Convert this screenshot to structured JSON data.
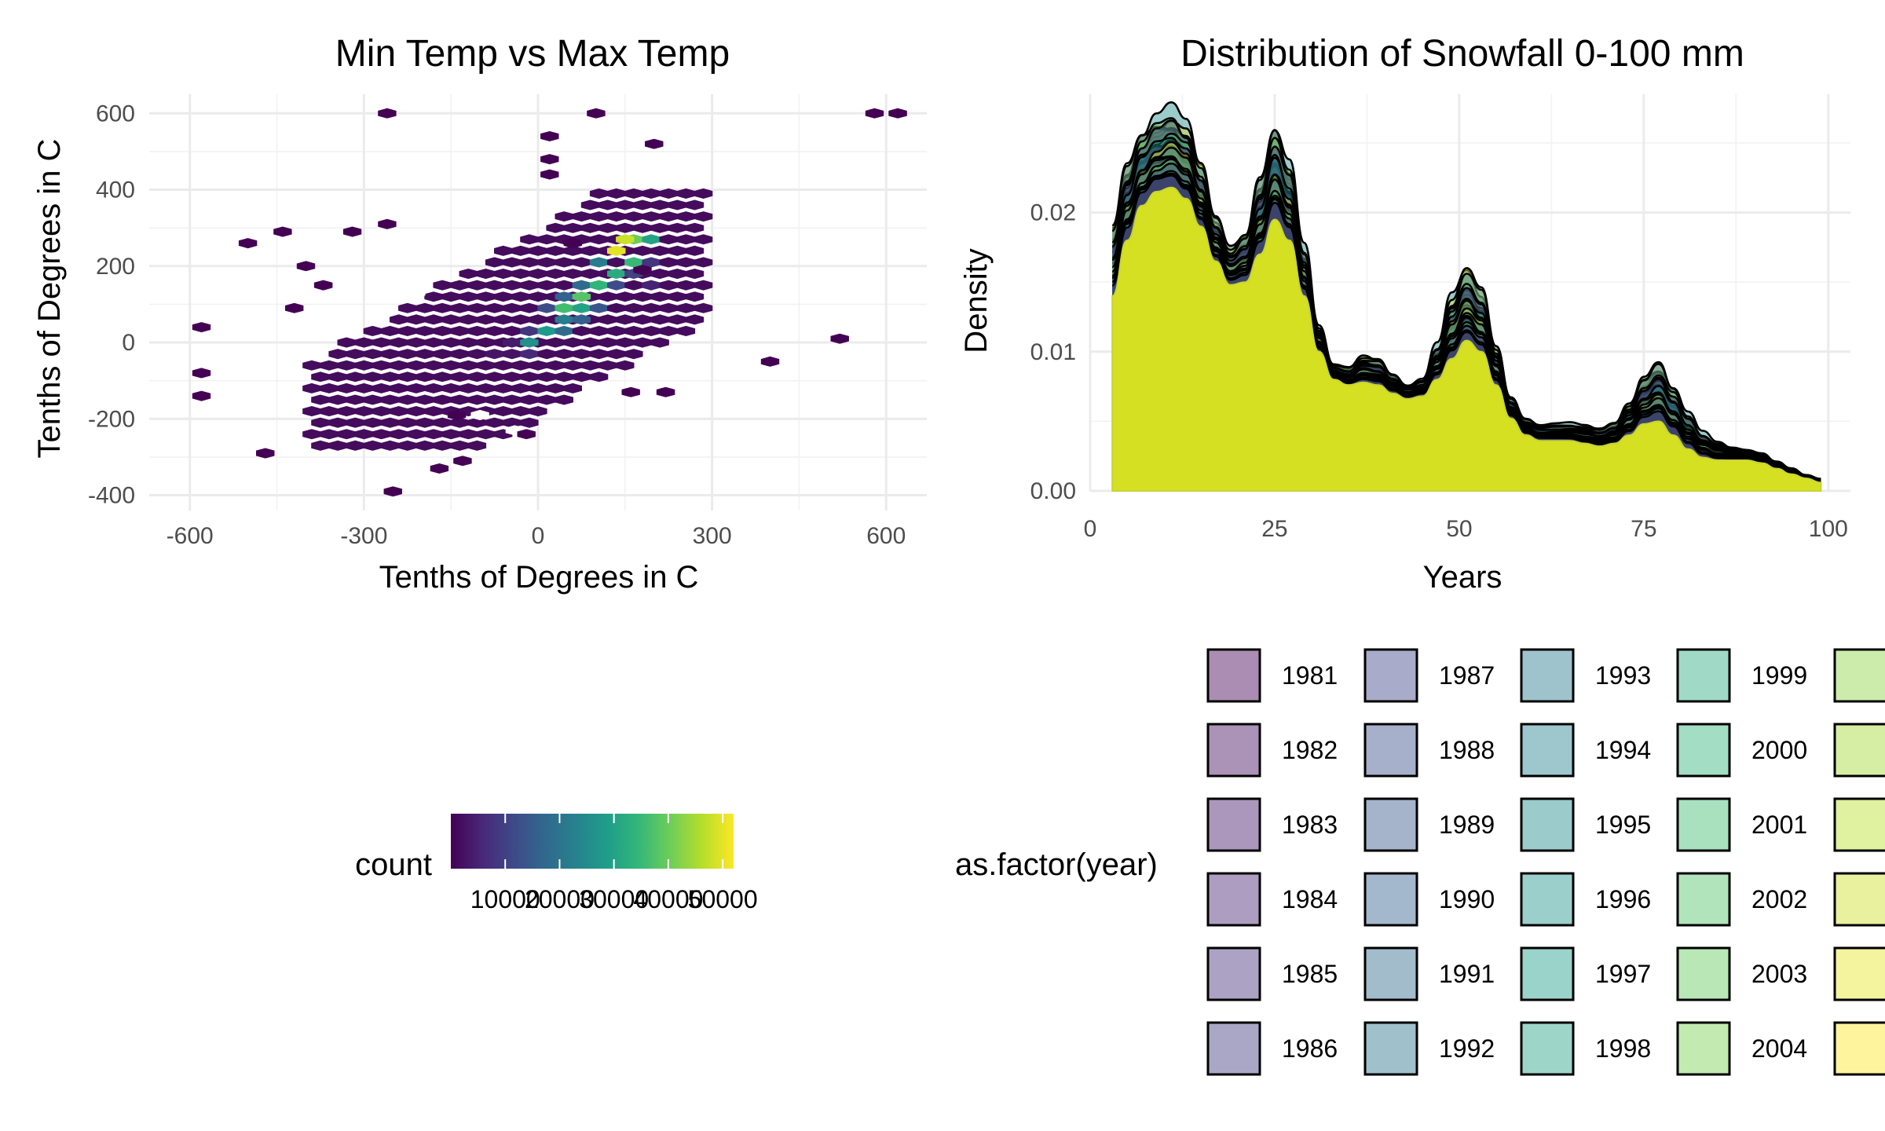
{
  "colors": {
    "viridis": [
      "#440154",
      "#482878",
      "#3e4a89",
      "#31688e",
      "#26828e",
      "#1f9e89",
      "#35b779",
      "#6ece58",
      "#b5de2b",
      "#fde725"
    ],
    "curve_stroke": "#000000",
    "grid": "#ebebeb"
  },
  "chart_data": [
    {
      "type": "heatmap",
      "subtype": "hexbin",
      "title": "Min Temp vs Max Temp",
      "xlabel": "Tenths of Degrees in C",
      "ylabel": "Tenths of Degrees in C",
      "xlim": [
        -670,
        670
      ],
      "ylim": [
        -440,
        650
      ],
      "x_ticks": [
        -600,
        -300,
        0,
        300,
        600
      ],
      "x_tick_labels": [
        "-600",
        "-300",
        "0",
        "300",
        "600"
      ],
      "y_ticks": [
        -400,
        -200,
        0,
        200,
        400,
        600
      ],
      "y_tick_labels": [
        "-400",
        "-200",
        "0",
        "200",
        "400",
        "600"
      ],
      "grid": true,
      "hex_bins": {
        "centers_xy_count": [
          [
            -80,
            -20,
            3000
          ],
          [
            -50,
            0,
            4000
          ],
          [
            -20,
            40,
            8000
          ],
          [
            10,
            80,
            12000
          ],
          [
            40,
            120,
            16000
          ],
          [
            70,
            160,
            18000
          ],
          [
            100,
            200,
            22000
          ],
          [
            130,
            240,
            28000
          ],
          [
            160,
            270,
            40000
          ],
          [
            -20,
            -20,
            6000
          ],
          [
            10,
            20,
            14000
          ],
          [
            40,
            60,
            22000
          ],
          [
            70,
            100,
            30000
          ],
          [
            100,
            140,
            34000
          ],
          [
            130,
            180,
            32000
          ],
          [
            160,
            220,
            35000
          ],
          [
            190,
            260,
            30000
          ],
          [
            130,
            230,
            50000
          ],
          [
            150,
            260,
            48000
          ],
          [
            -10,
            0,
            26000
          ],
          [
            20,
            40,
            28000
          ],
          [
            50,
            80,
            36000
          ],
          [
            80,
            120,
            38000
          ],
          [
            -40,
            -40,
            2500
          ],
          [
            40,
            20,
            18000
          ],
          [
            70,
            60,
            16000
          ],
          [
            100,
            100,
            14000
          ],
          [
            130,
            140,
            12000
          ],
          [
            160,
            180,
            10000
          ],
          [
            190,
            220,
            8000
          ],
          [
            200,
            160,
            5000
          ],
          [
            -100,
            -40,
            1500
          ]
        ],
        "sparse_points_xy": [
          [
            -260,
            600
          ],
          [
            100,
            600
          ],
          [
            580,
            600
          ],
          [
            620,
            600
          ],
          [
            20,
            540
          ],
          [
            200,
            520
          ],
          [
            20,
            480
          ],
          [
            20,
            440
          ],
          [
            -500,
            260
          ],
          [
            -440,
            290
          ],
          [
            -320,
            290
          ],
          [
            -260,
            310
          ],
          [
            -400,
            200
          ],
          [
            -370,
            150
          ],
          [
            -420,
            90
          ],
          [
            -580,
            40
          ],
          [
            -580,
            -80
          ],
          [
            -580,
            -140
          ],
          [
            520,
            10
          ],
          [
            400,
            -50
          ],
          [
            -250,
            -390
          ],
          [
            -170,
            -330
          ],
          [
            -130,
            -310
          ],
          [
            -20,
            -240
          ],
          [
            -140,
            -190
          ],
          [
            220,
            -130
          ],
          [
            160,
            -130
          ],
          [
            60,
            260
          ],
          [
            180,
            190
          ],
          [
            -470,
            -290
          ]
        ]
      },
      "legend": {
        "title": "count",
        "placement": "bottom",
        "range": [
          1,
          52000
        ],
        "ticks": [
          10000,
          20000,
          30000,
          40000,
          50000
        ],
        "tick_labels": [
          "10000",
          "20000",
          "30000",
          "40000",
          "50000"
        ]
      }
    },
    {
      "type": "area",
      "subtype": "density",
      "title": "Distribution of Snowfall 0-100 mm",
      "xlabel": "Years",
      "ylabel": "Density",
      "xlim": [
        0,
        103
      ],
      "ylim": [
        0,
        0.0285
      ],
      "x_ticks": [
        0,
        25,
        50,
        75,
        100
      ],
      "x_tick_labels": [
        "0",
        "25",
        "50",
        "75",
        "100"
      ],
      "y_ticks": [
        0,
        0.01,
        0.02
      ],
      "y_tick_labels": [
        "0.00",
        "0.01",
        "0.02"
      ],
      "grid": true,
      "x": [
        3,
        5,
        7,
        9,
        11,
        13,
        15,
        17,
        19,
        21,
        23,
        25,
        27,
        29,
        31,
        33,
        35,
        37,
        39,
        41,
        43,
        45,
        47,
        49,
        51,
        53,
        55,
        57,
        59,
        61,
        63,
        65,
        67,
        69,
        71,
        73,
        75,
        77,
        79,
        81,
        83,
        85,
        87,
        89,
        91,
        93,
        95,
        97,
        99
      ],
      "base_density": [
        0.014,
        0.018,
        0.0205,
        0.0215,
        0.0218,
        0.021,
        0.019,
        0.0165,
        0.0148,
        0.015,
        0.017,
        0.0195,
        0.018,
        0.014,
        0.01,
        0.008,
        0.0076,
        0.0078,
        0.0076,
        0.007,
        0.0066,
        0.0068,
        0.008,
        0.0095,
        0.0108,
        0.01,
        0.0076,
        0.0052,
        0.004,
        0.0036,
        0.0036,
        0.0036,
        0.0034,
        0.0032,
        0.0034,
        0.004,
        0.0048,
        0.005,
        0.004,
        0.003,
        0.0024,
        0.0022,
        0.0022,
        0.0022,
        0.002,
        0.0016,
        0.0012,
        0.0009,
        0.0006
      ],
      "peak_density": [
        0.02,
        0.0245,
        0.0268,
        0.0278,
        0.0282,
        0.027,
        0.024,
        0.02,
        0.018,
        0.019,
        0.0235,
        0.0275,
        0.0245,
        0.018,
        0.012,
        0.0092,
        0.009,
        0.01,
        0.0098,
        0.0086,
        0.0078,
        0.0082,
        0.0108,
        0.0145,
        0.0165,
        0.015,
        0.0108,
        0.007,
        0.0054,
        0.005,
        0.005,
        0.005,
        0.0048,
        0.0046,
        0.005,
        0.0066,
        0.0088,
        0.01,
        0.0082,
        0.006,
        0.0044,
        0.0036,
        0.0032,
        0.003,
        0.0028,
        0.0022,
        0.0017,
        0.0012,
        0.0009
      ],
      "legend": {
        "title": "as.factor(year)",
        "placement": "bottom",
        "columns": [
          [
            "1981",
            "1982",
            "1983",
            "1984",
            "1985",
            "1986"
          ],
          [
            "1987",
            "1988",
            "1989",
            "1990",
            "1991",
            "1992"
          ],
          [
            "1993",
            "1994",
            "1995",
            "1996",
            "1997",
            "1998"
          ],
          [
            "1999",
            "2000",
            "2001",
            "2002",
            "2003",
            "2004"
          ],
          [
            "",
            "",
            "",
            "",
            "",
            ""
          ]
        ]
      }
    }
  ]
}
